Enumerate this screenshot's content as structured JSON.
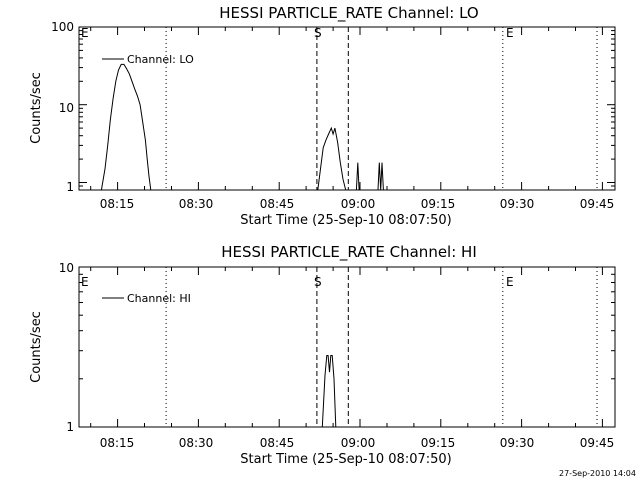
{
  "footer": "27-Sep-2010 14:04",
  "chart_data": [
    {
      "type": "line",
      "title": "HESSI PARTICLE_RATE Channel: LO",
      "xlabel": "Start Time (25-Sep-10 08:07:50)",
      "ylabel": "Counts/sec",
      "y_scale": "log",
      "ylim": [
        0.8,
        100
      ],
      "xlim": [
        "08:07:50",
        "09:47:20"
      ],
      "xtick_labels": [
        "08:15",
        "08:30",
        "08:45",
        "09:00",
        "09:15",
        "09:30",
        "09:45"
      ],
      "ytick_labels": [
        "1",
        "10",
        "100"
      ],
      "legend": {
        "placement": "top-left",
        "label": "Channel: LO"
      },
      "series": [
        {
          "name": "Channel: LO",
          "segments": [
            {
              "x": [
                "08:12:00",
                "08:12:40",
                "08:13:10",
                "08:13:40",
                "08:14:10",
                "08:14:40",
                "08:15:10",
                "08:15:40",
                "08:16:10",
                "08:16:40",
                "08:17:10",
                "08:17:40",
                "08:18:10",
                "08:18:40",
                "08:19:10",
                "08:19:40",
                "08:20:10",
                "08:20:30",
                "08:20:50",
                "08:21:10"
              ],
              "y": [
                0.8,
                1.5,
                3.0,
                6.5,
                12,
                20,
                28,
                33,
                33,
                29,
                25,
                20,
                16,
                13,
                10,
                6,
                3.5,
                2.0,
                1.2,
                0.8
              ]
            },
            {
              "x": [
                "08:52:10",
                "08:52:40",
                "08:53:10",
                "08:53:40",
                "08:54:10",
                "08:54:40",
                "08:55:00",
                "08:55:20",
                "08:55:50",
                "08:56:20",
                "08:56:50",
                "08:57:20"
              ],
              "y": [
                0.8,
                1.5,
                2.8,
                3.5,
                4.2,
                5.0,
                4.2,
                5.0,
                3.3,
                1.8,
                1.1,
                0.8
              ]
            },
            {
              "x": [
                "08:59:20",
                "08:59:35",
                "08:59:50"
              ],
              "y": [
                0.8,
                1.8,
                0.8
              ]
            },
            {
              "x": [
                "09:03:20",
                "09:03:35",
                "09:03:50",
                "09:04:05",
                "09:04:20"
              ],
              "y": [
                0.8,
                1.8,
                0.8,
                1.8,
                0.8
              ]
            }
          ]
        }
      ],
      "vlines": [
        {
          "x": "08:24:00",
          "style": "dotted"
        },
        {
          "x": "08:52:00",
          "style": "dashed",
          "label": "S"
        },
        {
          "x": "08:57:50",
          "style": "dashed"
        },
        {
          "x": "09:26:30",
          "style": "dotted",
          "label": "E"
        },
        {
          "x": "09:44:00",
          "style": "dotted"
        }
      ],
      "edge_marker": "E"
    },
    {
      "type": "line",
      "title": "HESSI PARTICLE_RATE Channel: HI",
      "xlabel": "Start Time (25-Sep-10 08:07:50)",
      "ylabel": "Counts/sec",
      "y_scale": "log",
      "ylim": [
        1,
        10
      ],
      "xlim": [
        "08:07:50",
        "09:47:20"
      ],
      "xtick_labels": [
        "08:15",
        "08:30",
        "08:45",
        "09:00",
        "09:15",
        "09:30",
        "09:45"
      ],
      "ytick_labels": [
        "1",
        "10"
      ],
      "legend": {
        "placement": "top-left",
        "label": "Channel: HI"
      },
      "series": [
        {
          "name": "Channel: HI",
          "segments": [
            {
              "x": [
                "08:53:00",
                "08:53:30",
                "08:53:50",
                "08:54:05",
                "08:54:20",
                "08:54:35",
                "08:54:50",
                "08:55:10",
                "08:55:30"
              ],
              "y": [
                1.0,
                2.1,
                2.8,
                2.8,
                2.2,
                2.8,
                2.8,
                2.0,
                1.0
              ]
            }
          ]
        }
      ],
      "vlines": [
        {
          "x": "08:24:00",
          "style": "dotted"
        },
        {
          "x": "08:52:00",
          "style": "dashed",
          "label": "S"
        },
        {
          "x": "08:57:50",
          "style": "dashed"
        },
        {
          "x": "09:26:30",
          "style": "dotted",
          "label": "E"
        },
        {
          "x": "09:44:00",
          "style": "dotted"
        }
      ],
      "edge_marker": "E"
    }
  ]
}
